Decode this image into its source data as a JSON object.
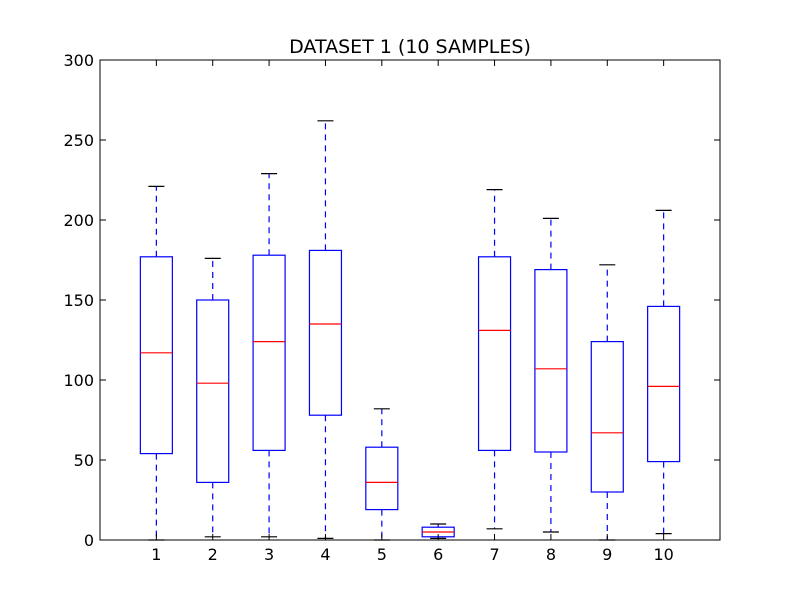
{
  "chart_data": {
    "type": "box",
    "title": "DATASET 1 (10 SAMPLES)",
    "xlabel": "",
    "ylabel": "",
    "ylim": [
      0,
      300
    ],
    "yticks": [
      0,
      50,
      100,
      150,
      200,
      250,
      300
    ],
    "categories": [
      "1",
      "2",
      "3",
      "4",
      "5",
      "6",
      "7",
      "8",
      "9",
      "10"
    ],
    "boxes": [
      {
        "whislo": 0,
        "q1": 54,
        "med": 117,
        "q3": 177,
        "whishi": 221
      },
      {
        "whislo": 2,
        "q1": 36,
        "med": 98,
        "q3": 150,
        "whishi": 176
      },
      {
        "whislo": 2,
        "q1": 56,
        "med": 124,
        "q3": 178,
        "whishi": 229
      },
      {
        "whislo": 1,
        "q1": 78,
        "med": 135,
        "q3": 181,
        "whishi": 262
      },
      {
        "whislo": 0,
        "q1": 19,
        "med": 36,
        "q3": 58,
        "whishi": 82
      },
      {
        "whislo": 1,
        "q1": 2,
        "med": 5,
        "q3": 8,
        "whishi": 10
      },
      {
        "whislo": 7,
        "q1": 56,
        "med": 131,
        "q3": 177,
        "whishi": 219
      },
      {
        "whislo": 5,
        "q1": 55,
        "med": 107,
        "q3": 169,
        "whishi": 201
      },
      {
        "whislo": 0,
        "q1": 30,
        "med": 67,
        "q3": 124,
        "whishi": 172
      },
      {
        "whislo": 4,
        "q1": 49,
        "med": 96,
        "q3": 146,
        "whishi": 206
      }
    ],
    "grid": false,
    "colors": {
      "box": "#0000ff",
      "whisker": "#0000ff",
      "median": "#ff0000",
      "cap": "#000000",
      "axes": "#000000"
    }
  }
}
